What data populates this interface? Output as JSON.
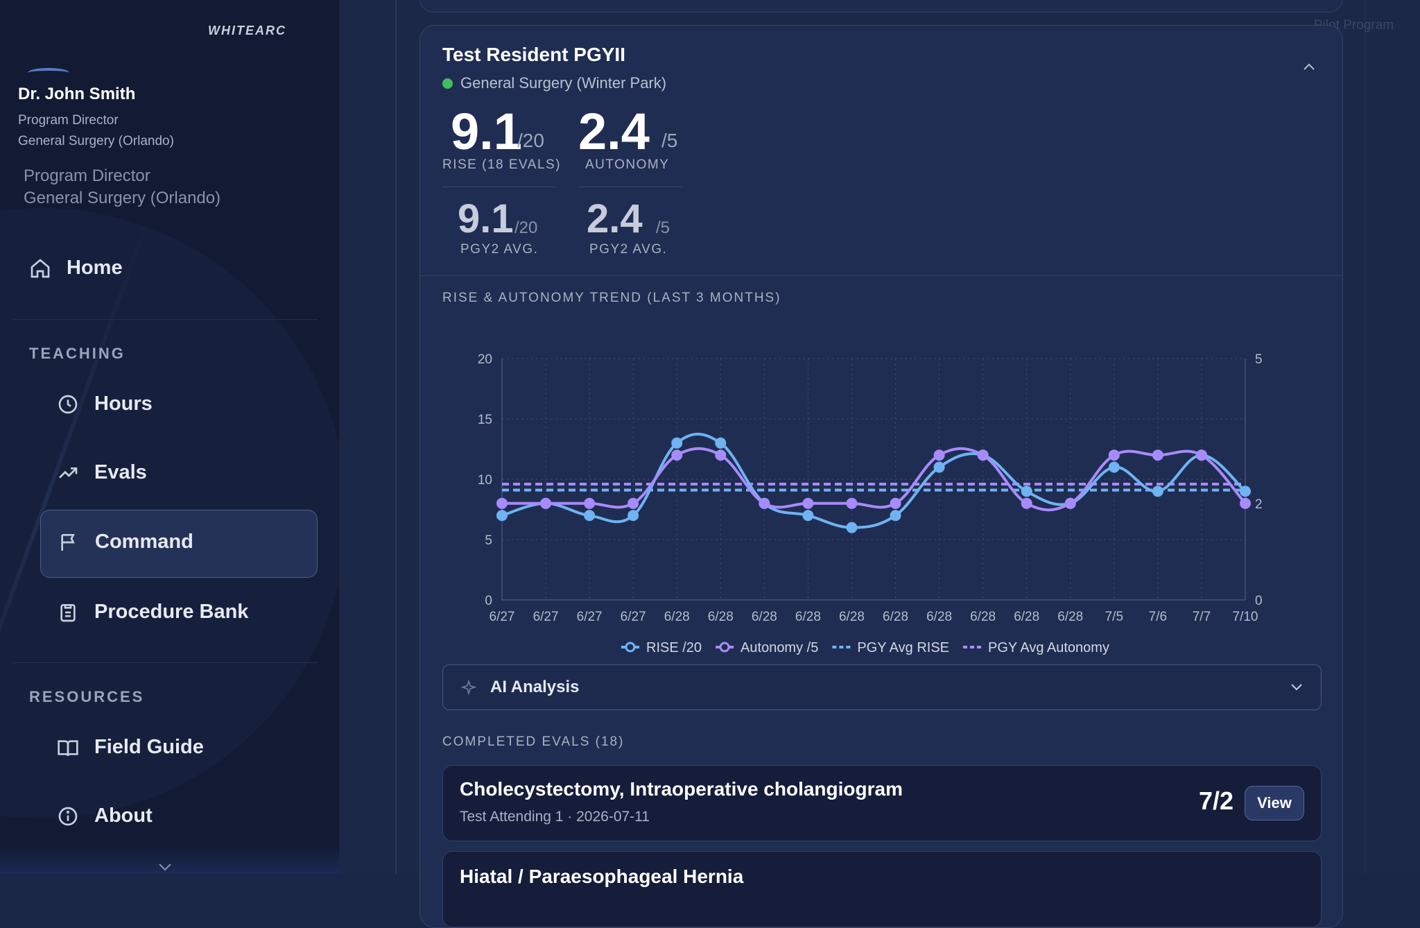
{
  "brand": {
    "logo_text": "WHITEARC"
  },
  "profile": {
    "name": "Dr. John Smith",
    "role": "Program Director",
    "department": "General Surgery (Orlando)",
    "role_secondary": "Program Director",
    "department_secondary": "General Surgery (Orlando)"
  },
  "nav": {
    "home": "Home",
    "teaching_label": "TEACHING",
    "hours": "Hours",
    "evals": "Evals",
    "command": "Command",
    "procedure_bank": "Procedure Bank",
    "resources_label": "RESOURCES",
    "field_guide": "Field Guide",
    "about": "About"
  },
  "header": {
    "pilot_label": "Pilot Program"
  },
  "resident": {
    "name": "Test Resident PGYII",
    "department": "General Surgery (Winter Park)",
    "status_color": "#3fbf5f",
    "rise_value": "9.1",
    "rise_max": "/20",
    "rise_caption": "RISE (18 EVALS)",
    "autonomy_value": "2.4",
    "autonomy_max": "/5",
    "autonomy_caption": "AUTONOMY",
    "pgy_rise_value": "9.1",
    "pgy_rise_max": "/20",
    "pgy_rise_caption": "PGY2 AVG.",
    "pgy_autonomy_value": "2.4",
    "pgy_autonomy_max": "/5",
    "pgy_autonomy_caption": "PGY2 AVG."
  },
  "trend": {
    "title": "RISE & AUTONOMY TREND (LAST 3 MONTHS)"
  },
  "chart_data": {
    "type": "line",
    "categories": [
      "6/27",
      "6/27",
      "6/27",
      "6/27",
      "6/28",
      "6/28",
      "6/28",
      "6/28",
      "6/28",
      "6/28",
      "6/28",
      "6/28",
      "6/28",
      "6/28",
      "7/5",
      "7/6",
      "7/7",
      "7/10"
    ],
    "y_left": {
      "min": 0,
      "max": 20,
      "ticks": [
        0,
        5,
        10,
        15,
        20
      ]
    },
    "y_right": {
      "min": 0,
      "max": 5,
      "ticks": [
        0,
        2,
        5
      ]
    },
    "series": [
      {
        "name": "RISE /20",
        "axis": "left",
        "color": "#6fb3f2",
        "values": [
          7,
          8,
          7,
          7,
          13,
          13,
          8,
          7,
          6,
          7,
          11,
          12,
          9,
          8,
          11,
          9,
          12,
          9
        ]
      },
      {
        "name": "Autonomy /5",
        "axis": "right",
        "color": "#a78bfa",
        "values": [
          2,
          2,
          2,
          2,
          3,
          3,
          2,
          2,
          2,
          2,
          3,
          3,
          2,
          2,
          3,
          3,
          3,
          2
        ]
      },
      {
        "name": "PGY Avg RISE",
        "axis": "left",
        "color": "#6fb3f2",
        "dashed": true,
        "value": 9.1
      },
      {
        "name": "PGY Avg Autonomy",
        "axis": "right",
        "color": "#a78bfa",
        "dashed": true,
        "value": 2.4
      }
    ],
    "legend_position": "bottom",
    "grid": true
  },
  "ai_analysis": {
    "label": "AI Analysis"
  },
  "evals": {
    "title": "COMPLETED EVALS (18)",
    "items": [
      {
        "title": "Cholecystectomy, Intraoperative cholangiogram",
        "meta": "Test Attending 1 · 2026-07-11",
        "score": "7/2",
        "action": "View"
      },
      {
        "title": "Hiatal / Paraesophageal Hernia"
      }
    ]
  }
}
